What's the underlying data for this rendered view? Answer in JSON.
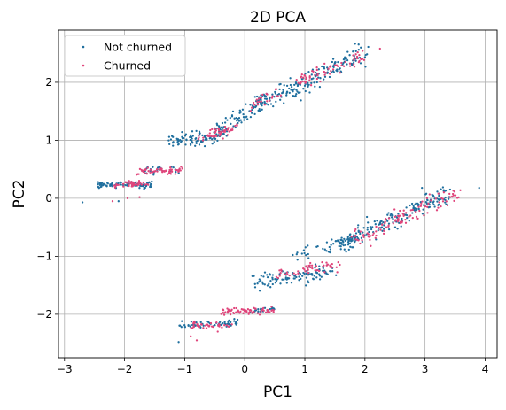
{
  "chart_data": {
    "type": "scatter",
    "title": "2D PCA",
    "xlabel": "PC1",
    "ylabel": "PC2",
    "xlim": [
      -3.1,
      4.2
    ],
    "ylim": [
      -2.75,
      2.9
    ],
    "xticks": [
      -3,
      -2,
      -1,
      0,
      1,
      2,
      3,
      4
    ],
    "yticks": [
      -2,
      -1,
      0,
      1,
      2
    ],
    "grid": true,
    "legend_position": "top-left",
    "series": [
      {
        "name": "Not churned",
        "color": "#1f6f9e",
        "segments": [
          {
            "from": [
              -2.45,
              0.23
            ],
            "to": [
              -1.55,
              0.25
            ],
            "count": 90,
            "spread": 0.03
          },
          {
            "from": [
              -1.75,
              0.45
            ],
            "to": [
              -1.1,
              0.52
            ],
            "count": 25,
            "spread": 0.04
          },
          {
            "from": [
              -1.3,
              0.95
            ],
            "to": [
              -0.4,
              1.1
            ],
            "count": 90,
            "spread": 0.06
          },
          {
            "from": [
              -0.5,
              1.1
            ],
            "to": [
              0.3,
              1.7
            ],
            "count": 80,
            "spread": 0.09
          },
          {
            "from": [
              0.2,
              1.6
            ],
            "to": [
              0.9,
              1.95
            ],
            "count": 70,
            "spread": 0.09
          },
          {
            "from": [
              0.9,
              1.9
            ],
            "to": [
              2.0,
              2.55
            ],
            "count": 110,
            "spread": 0.09
          },
          {
            "from": [
              -1.1,
              -2.2
            ],
            "to": [
              -0.1,
              -2.15
            ],
            "count": 60,
            "spread": 0.03
          },
          {
            "from": [
              0.1,
              -1.95
            ],
            "to": [
              0.5,
              -1.9
            ],
            "count": 25,
            "spread": 0.03
          },
          {
            "from": [
              0.15,
              -1.45
            ],
            "to": [
              1.5,
              -1.25
            ],
            "count": 110,
            "spread": 0.07
          },
          {
            "from": [
              0.8,
              -1.0
            ],
            "to": [
              1.8,
              -0.75
            ],
            "count": 50,
            "spread": 0.06
          },
          {
            "from": [
              1.6,
              -0.8
            ],
            "to": [
              3.4,
              0.1
            ],
            "count": 180,
            "spread": 0.09
          }
        ],
        "points": [
          [
            -2.7,
            -0.07
          ],
          [
            3.9,
            0.18
          ],
          [
            -1.1,
            -2.48
          ],
          [
            -2.1,
            -0.05
          ],
          [
            2.95,
            0.18
          ]
        ]
      },
      {
        "name": "Churned",
        "color": "#e0457b",
        "segments": [
          {
            "from": [
              -2.2,
              0.22
            ],
            "to": [
              -1.6,
              0.26
            ],
            "count": 40,
            "spread": 0.03
          },
          {
            "from": [
              -1.8,
              0.45
            ],
            "to": [
              -1.0,
              0.5
            ],
            "count": 60,
            "spread": 0.03
          },
          {
            "from": [
              -0.8,
              1.0
            ],
            "to": [
              -0.1,
              1.25
            ],
            "count": 50,
            "spread": 0.05
          },
          {
            "from": [
              0.1,
              1.55
            ],
            "to": [
              0.6,
              1.85
            ],
            "count": 25,
            "spread": 0.07
          },
          {
            "from": [
              0.9,
              2.0
            ],
            "to": [
              2.0,
              2.45
            ],
            "count": 70,
            "spread": 0.07
          },
          {
            "from": [
              -0.9,
              -2.2
            ],
            "to": [
              -0.2,
              -2.2
            ],
            "count": 40,
            "spread": 0.03
          },
          {
            "from": [
              -0.4,
              -1.95
            ],
            "to": [
              0.5,
              -1.93
            ],
            "count": 70,
            "spread": 0.03
          },
          {
            "from": [
              0.5,
              -1.3
            ],
            "to": [
              1.6,
              -1.15
            ],
            "count": 50,
            "spread": 0.05
          },
          {
            "from": [
              1.8,
              -0.75
            ],
            "to": [
              3.6,
              0.1
            ],
            "count": 110,
            "spread": 0.08
          }
        ],
        "points": [
          [
            -2.2,
            -0.05
          ],
          [
            2.25,
            2.58
          ],
          [
            -0.9,
            -2.38
          ],
          [
            -0.8,
            -2.45
          ],
          [
            -0.45,
            -2.3
          ],
          [
            -1.95,
            0.0
          ],
          [
            -1.75,
            0.02
          ]
        ]
      }
    ]
  }
}
